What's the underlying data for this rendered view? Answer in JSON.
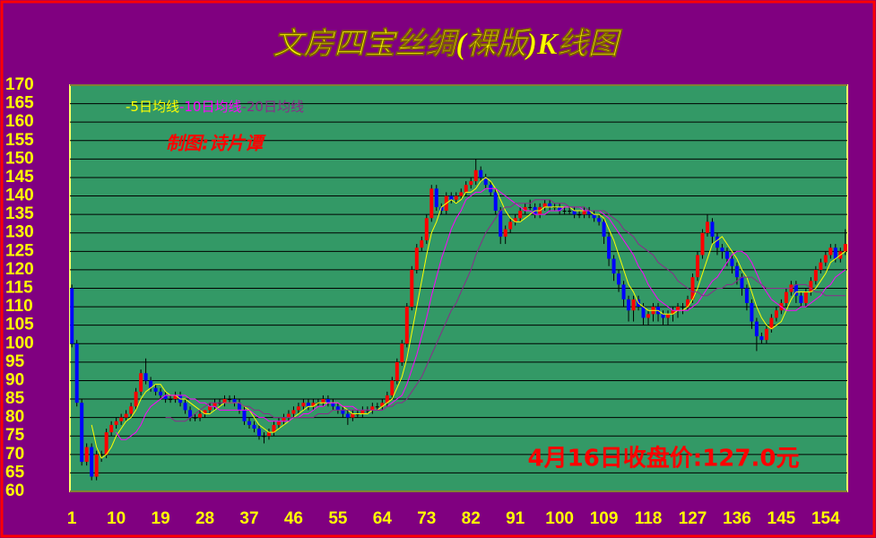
{
  "chart_data": {
    "type": "candlestick",
    "title": "文房四宝丝绸(裸版)K线图",
    "annotations": [
      "制图:诗片谭",
      "4月16日收盘价:127.0元"
    ],
    "up_color": "#ff0000",
    "down_color": "#0000ff",
    "flat_color": "#000000",
    "open": [
      115,
      100,
      84,
      68,
      72,
      64,
      70,
      70,
      76,
      78,
      79,
      80,
      81,
      83,
      87,
      92,
      90,
      88,
      87,
      86,
      85,
      85,
      86,
      84,
      82,
      80,
      80,
      81,
      82,
      83,
      84,
      84,
      85,
      85,
      84,
      82,
      79,
      78,
      77,
      75,
      75,
      76,
      78,
      79,
      80,
      81,
      82,
      83,
      84,
      83,
      84,
      84,
      85,
      84,
      83,
      82,
      81,
      80,
      81,
      81,
      82,
      82,
      83,
      83,
      84,
      86,
      90,
      95,
      100,
      110,
      120,
      126,
      128,
      134,
      142,
      137,
      136,
      140,
      139,
      140,
      141,
      143,
      144,
      147,
      145,
      143,
      141,
      136,
      129,
      131,
      133,
      134,
      136,
      137,
      137,
      135,
      137,
      138,
      137,
      137,
      136,
      136,
      136,
      135,
      135,
      136,
      135,
      134,
      133,
      129,
      123,
      119,
      116,
      112,
      109,
      112,
      110,
      107,
      108,
      110,
      108,
      107,
      108,
      109,
      110,
      110,
      112,
      118,
      124,
      130,
      133,
      129,
      126,
      125,
      123,
      121,
      118,
      115,
      111,
      106,
      102,
      101,
      104,
      107,
      109,
      111,
      114,
      116,
      113,
      111,
      114,
      117,
      120,
      122,
      124,
      126,
      123,
      125
    ],
    "high": [
      116,
      101,
      85,
      73,
      73,
      71,
      71,
      77,
      79,
      80,
      81,
      82,
      84,
      88,
      93,
      96,
      91,
      89,
      88,
      87,
      86,
      87,
      87,
      85,
      83,
      81,
      82,
      82,
      84,
      85,
      85,
      86,
      86,
      86,
      85,
      83,
      80,
      79,
      78,
      76,
      77,
      79,
      80,
      81,
      82,
      83,
      84,
      85,
      85,
      85,
      85,
      86,
      86,
      85,
      84,
      83,
      82,
      82,
      82,
      83,
      83,
      84,
      84,
      85,
      87,
      91,
      96,
      101,
      111,
      121,
      127,
      129,
      135,
      143,
      143,
      138,
      141,
      141,
      141,
      142,
      144,
      145,
      150,
      148,
      146,
      144,
      142,
      137,
      132,
      134,
      135,
      137,
      138,
      139,
      138,
      138,
      139,
      139,
      138,
      138,
      137,
      137,
      137,
      136,
      137,
      137,
      136,
      135,
      134,
      130,
      124,
      120,
      117,
      113,
      113,
      113,
      111,
      109,
      111,
      111,
      109,
      109,
      110,
      111,
      111,
      113,
      119,
      125,
      131,
      135,
      134,
      130,
      127,
      126,
      124,
      122,
      119,
      116,
      112,
      107,
      103,
      105,
      108,
      110,
      112,
      115,
      117,
      117,
      114,
      115,
      118,
      121,
      123,
      125,
      127,
      127,
      126,
      131
    ],
    "low": [
      99,
      83,
      67,
      67,
      63,
      63,
      68,
      69,
      75,
      77,
      78,
      79,
      80,
      82,
      86,
      89,
      87,
      86,
      85,
      84,
      84,
      84,
      83,
      81,
      79,
      79,
      79,
      80,
      81,
      82,
      83,
      83,
      84,
      83,
      81,
      78,
      77,
      76,
      74,
      73,
      74,
      75,
      77,
      78,
      79,
      80,
      81,
      82,
      82,
      82,
      83,
      83,
      83,
      82,
      81,
      80,
      78,
      79,
      80,
      80,
      81,
      81,
      82,
      82,
      83,
      85,
      89,
      94,
      99,
      109,
      119,
      125,
      127,
      133,
      136,
      135,
      135,
      138,
      138,
      139,
      140,
      142,
      143,
      144,
      142,
      140,
      135,
      127,
      127,
      130,
      132,
      133,
      135,
      136,
      134,
      134,
      136,
      136,
      136,
      135,
      135,
      135,
      134,
      134,
      134,
      134,
      133,
      132,
      127,
      121,
      117,
      114,
      110,
      106,
      106,
      109,
      105,
      105,
      106,
      106,
      105,
      105,
      106,
      107,
      108,
      109,
      111,
      117,
      123,
      129,
      127,
      124,
      123,
      121,
      119,
      116,
      113,
      109,
      104,
      98,
      100,
      100,
      103,
      106,
      108,
      110,
      113,
      111,
      110,
      110,
      113,
      116,
      119,
      121,
      123,
      122,
      122,
      124
    ],
    "close": [
      100,
      84,
      68,
      72,
      64,
      70,
      70,
      76,
      78,
      79,
      80,
      81,
      83,
      87,
      92,
      90,
      88,
      87,
      86,
      85,
      85,
      86,
      84,
      82,
      80,
      80,
      81,
      82,
      83,
      84,
      84,
      85,
      85,
      84,
      82,
      79,
      78,
      77,
      75,
      75,
      76,
      78,
      79,
      80,
      81,
      82,
      83,
      84,
      83,
      84,
      84,
      85,
      84,
      83,
      82,
      81,
      80,
      81,
      81,
      82,
      82,
      83,
      83,
      84,
      86,
      90,
      95,
      100,
      110,
      120,
      126,
      128,
      134,
      142,
      137,
      136,
      140,
      139,
      140,
      141,
      143,
      144,
      147,
      145,
      143,
      141,
      136,
      129,
      131,
      133,
      134,
      136,
      137,
      137,
      135,
      137,
      138,
      137,
      137,
      136,
      136,
      136,
      135,
      135,
      136,
      135,
      134,
      133,
      129,
      123,
      119,
      116,
      112,
      109,
      112,
      110,
      107,
      108,
      110,
      108,
      107,
      108,
      109,
      110,
      110,
      112,
      118,
      124,
      130,
      133,
      129,
      126,
      125,
      123,
      121,
      118,
      115,
      111,
      106,
      102,
      101,
      104,
      107,
      109,
      111,
      114,
      116,
      113,
      111,
      114,
      117,
      120,
      122,
      124,
      126,
      123,
      125,
      127
    ],
    "lines": [
      {
        "name": "-5日均线",
        "color": "#ffff00",
        "values": [
          null,
          null,
          null,
          null,
          78,
          72,
          69,
          70,
          72,
          75,
          77,
          79,
          80,
          82,
          85,
          87,
          88,
          89,
          89,
          87,
          86,
          86,
          85,
          85,
          84,
          83,
          82,
          81,
          81,
          82,
          83,
          84,
          84,
          84,
          84,
          83,
          82,
          80,
          78,
          77,
          76,
          76,
          77,
          78,
          79,
          80,
          81,
          82,
          83,
          83,
          84,
          84,
          84,
          84,
          84,
          83,
          82,
          81,
          81,
          81,
          81,
          82,
          82,
          83,
          84,
          85,
          88,
          91,
          96,
          103,
          110,
          117,
          124,
          130,
          133,
          137,
          138,
          139,
          138,
          139,
          141,
          141,
          142,
          144,
          145,
          144,
          142,
          139,
          136,
          134,
          133,
          133,
          134,
          135,
          136,
          136,
          137,
          137,
          137,
          137,
          137,
          137,
          136,
          136,
          136,
          136,
          135,
          135,
          134,
          131,
          128,
          124,
          120,
          116,
          114,
          111,
          110,
          109,
          109,
          109,
          108,
          108,
          108,
          109,
          109,
          110,
          112,
          115,
          119,
          123,
          127,
          128,
          129,
          127,
          125,
          123,
          120,
          118,
          114,
          110,
          107,
          105,
          104,
          105,
          106,
          109,
          112,
          114,
          114,
          114,
          114,
          115,
          117,
          119,
          122,
          123,
          124,
          125
        ]
      },
      {
        "name": "-10日均线",
        "color": "#ff00ff",
        "values": [
          null,
          null,
          null,
          null,
          null,
          null,
          null,
          null,
          null,
          76,
          74,
          74,
          75,
          76,
          78,
          81,
          83,
          84,
          85,
          86,
          86,
          86,
          86,
          86,
          85,
          85,
          84,
          84,
          83,
          83,
          82,
          82,
          82,
          82,
          82,
          82,
          82,
          81,
          80,
          80,
          79,
          79,
          79,
          79,
          79,
          80,
          80,
          81,
          81,
          82,
          83,
          83,
          84,
          84,
          84,
          83,
          83,
          83,
          82,
          82,
          82,
          82,
          82,
          82,
          83,
          84,
          85,
          86,
          89,
          93,
          97,
          102,
          107,
          113,
          118,
          123,
          127,
          131,
          134,
          136,
          139,
          140,
          141,
          141,
          142,
          142,
          142,
          141,
          140,
          139,
          138,
          137,
          136,
          136,
          135,
          135,
          135,
          136,
          136,
          136,
          137,
          137,
          137,
          137,
          136,
          136,
          136,
          136,
          135,
          134,
          132,
          130,
          128,
          126,
          124,
          121,
          119,
          116,
          114,
          112,
          111,
          110,
          109,
          109,
          109,
          109,
          110,
          111,
          113,
          115,
          117,
          118,
          120,
          122,
          124,
          125,
          125,
          124,
          122,
          119,
          116,
          114,
          112,
          111,
          110,
          109,
          109,
          109,
          110,
          110,
          111,
          112,
          113,
          115,
          116,
          118,
          119,
          120
        ]
      },
      {
        "name": "-20日均线",
        "color": "#8b2a8b",
        "values": [
          null,
          null,
          null,
          null,
          null,
          null,
          null,
          null,
          null,
          null,
          null,
          null,
          null,
          null,
          null,
          null,
          null,
          null,
          null,
          80,
          80,
          79,
          79,
          79,
          80,
          81,
          82,
          83,
          84,
          84,
          84,
          84,
          84,
          84,
          84,
          83,
          83,
          82,
          82,
          81,
          81,
          80,
          80,
          80,
          80,
          80,
          80,
          80,
          80,
          80,
          81,
          81,
          81,
          82,
          82,
          82,
          82,
          82,
          82,
          82,
          82,
          82,
          82,
          82,
          83,
          83,
          84,
          84,
          85,
          87,
          89,
          91,
          94,
          97,
          100,
          103,
          106,
          109,
          111,
          114,
          117,
          120,
          124,
          127,
          130,
          132,
          134,
          136,
          137,
          137,
          138,
          138,
          138,
          138,
          139,
          139,
          139,
          139,
          138,
          138,
          138,
          137,
          137,
          137,
          137,
          136,
          136,
          136,
          136,
          135,
          134,
          133,
          131,
          130,
          129,
          127,
          126,
          125,
          124,
          122,
          121,
          120,
          119,
          117,
          116,
          115,
          114,
          114,
          113,
          113,
          114,
          115,
          115,
          116,
          116,
          117,
          118,
          118,
          118,
          117,
          116,
          115,
          115,
          115,
          115,
          115,
          115,
          116,
          116,
          116,
          115,
          114,
          114,
          113,
          113,
          113,
          113,
          113
        ]
      }
    ],
    "xlim": [
      0.6,
      158.4
    ],
    "xticks": [
      1,
      10,
      19,
      28,
      37,
      46,
      55,
      64,
      73,
      82,
      91,
      100,
      109,
      118,
      127,
      136,
      145,
      154
    ],
    "ylim": [
      60,
      170
    ],
    "yticks": [
      60,
      65,
      70,
      75,
      80,
      85,
      90,
      95,
      100,
      105,
      110,
      115,
      120,
      125,
      130,
      135,
      140,
      145,
      150,
      155,
      160,
      165,
      170
    ],
    "grid": true
  }
}
